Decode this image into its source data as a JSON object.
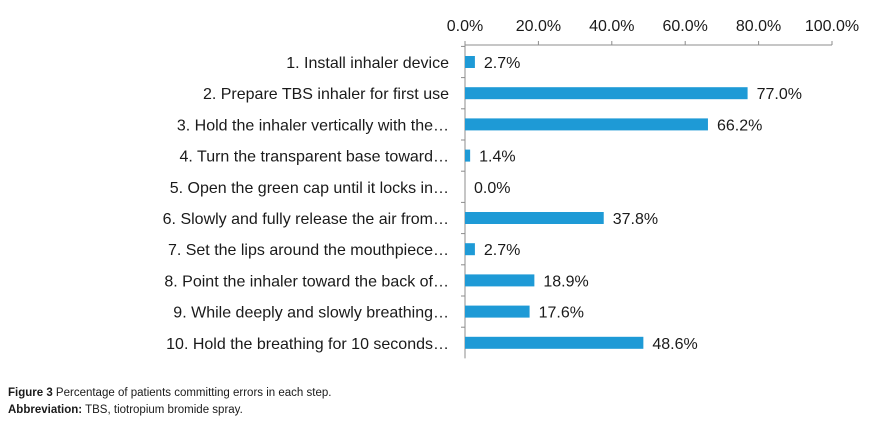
{
  "chart_data": {
    "type": "bar",
    "orientation": "horizontal",
    "categories": [
      "1. Install inhaler device",
      "2. Prepare TBS inhaler for first use",
      "3. Hold the inhaler vertically with the…",
      "4. Turn the transparent base toward…",
      "5. Open the green cap until it locks in…",
      "6. Slowly and fully release the air from…",
      "7. Set the lips around the mouthpiece…",
      "8. Point the inhaler toward the back of…",
      "9. While deeply and slowly breathing…",
      "10. Hold the breathing for 10 seconds…"
    ],
    "values": [
      2.7,
      77.0,
      66.2,
      1.4,
      0.0,
      37.8,
      2.7,
      18.9,
      17.6,
      48.6
    ],
    "value_labels": [
      "2.7%",
      "77.0%",
      "66.2%",
      "1.4%",
      "0.0%",
      "37.8%",
      "2.7%",
      "18.9%",
      "17.6%",
      "48.6%"
    ],
    "xlim": [
      0,
      100
    ],
    "x_ticks": [
      "0.0%",
      "20.0%",
      "40.0%",
      "60.0%",
      "80.0%",
      "100.0%"
    ],
    "x_axis_position": "top",
    "grid": false,
    "bar_color": "#1e9ad6"
  },
  "caption": {
    "figure_label": "Figure 3",
    "figure_text": " Percentage of patients committing errors in each step.",
    "abbrev_label": "Abbreviation:",
    "abbrev_text": " TBS, tiotropium bromide spray."
  }
}
